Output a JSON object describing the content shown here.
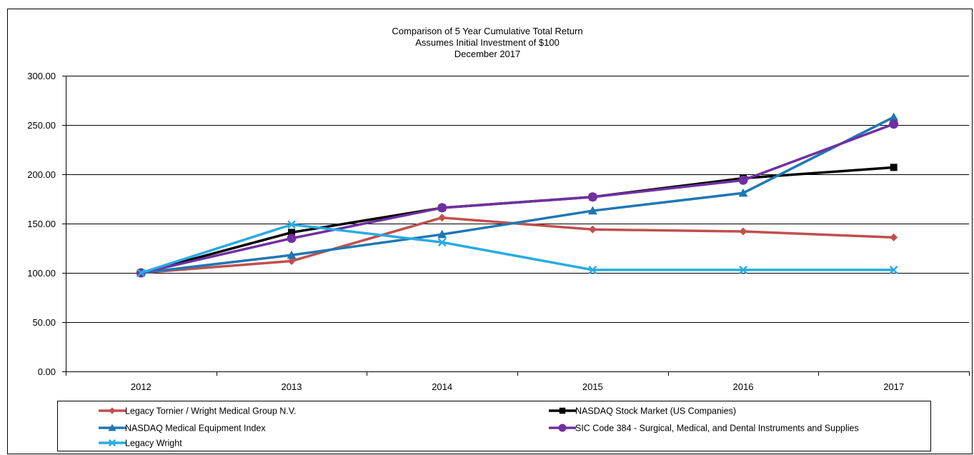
{
  "chart_data": {
    "type": "line",
    "title": [
      "Comparison of 5 Year Cumulative  Total Return",
      "Assumes Initial Investment  of $100",
      "December 2017"
    ],
    "xlabel": "",
    "ylabel": "",
    "x": [
      "2012",
      "2013",
      "2014",
      "2015",
      "2016",
      "2017"
    ],
    "ylim": [
      0,
      300
    ],
    "yticks": [
      "0.00",
      "50.00",
      "100.00",
      "150.00",
      "200.00",
      "250.00",
      "300.00"
    ],
    "grid": "horizontal",
    "legend_position": "bottom",
    "series": [
      {
        "name": "Legacy Tornier / Wright Medical Group N.V.",
        "color": "#c0504d",
        "marker": "diamond",
        "values": [
          100,
          112,
          156,
          144,
          142,
          136
        ]
      },
      {
        "name": "NASDAQ Stock Market (US Companies)",
        "color": "#000000",
        "marker": "square",
        "values": [
          100,
          141,
          166,
          177,
          196,
          207
        ]
      },
      {
        "name": "NASDAQ Medical Equipment Index",
        "color": "#1f77b4",
        "marker": "triangle",
        "values": [
          100,
          118,
          139,
          163,
          181,
          258
        ]
      },
      {
        "name": "SIC Code 384 - Surgical, Medical, and Dental Instruments and Supplies",
        "color": "#7030a0",
        "marker": "circle",
        "values": [
          100,
          135,
          166,
          177,
          194,
          251
        ]
      },
      {
        "name": "Legacy Wright",
        "color": "#29abe2",
        "marker": "x",
        "values": [
          100,
          149,
          131,
          103,
          103,
          103
        ]
      }
    ]
  }
}
